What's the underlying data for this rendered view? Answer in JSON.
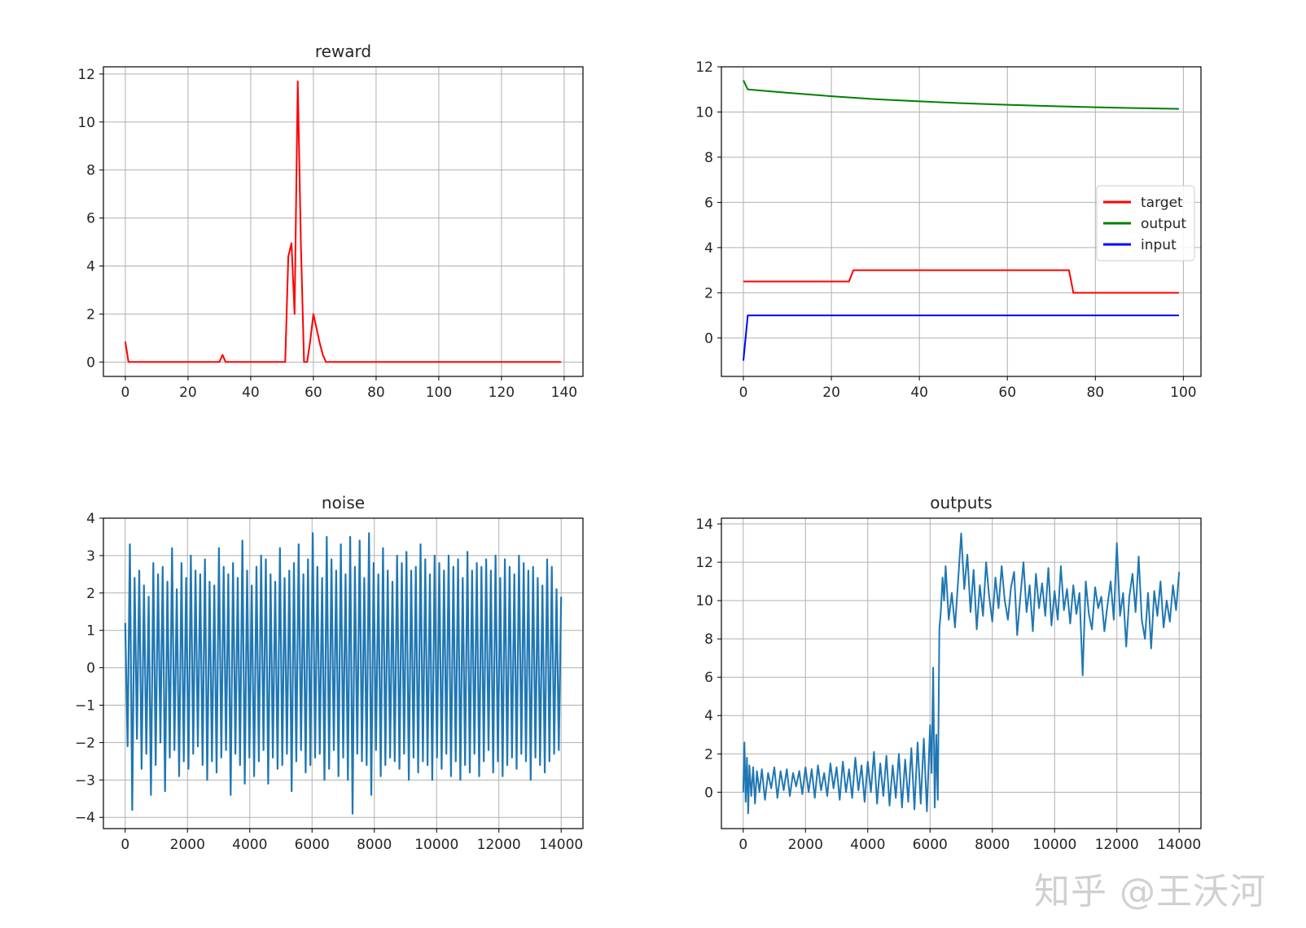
{
  "watermark": "知乎 @王沃河",
  "colors": {
    "red": "#ff0000",
    "green": "#008000",
    "blue": "#0000ff",
    "tab_blue": "#1f77b4",
    "grid": "#b0b0b0",
    "axis": "#000000"
  },
  "chart_data": [
    {
      "type": "line",
      "title": "reward",
      "xlabel": "",
      "ylabel": "",
      "xlim": [
        -7,
        146
      ],
      "ylim": [
        -0.6,
        12.3
      ],
      "xticks": [
        0,
        20,
        40,
        60,
        80,
        100,
        120,
        140
      ],
      "yticks": [
        0,
        2,
        4,
        6,
        8,
        10,
        12
      ],
      "grid": true,
      "series": [
        {
          "color": "#ff0000",
          "x": [
            0,
            1,
            30,
            31,
            32,
            51,
            52,
            53,
            54,
            55,
            56,
            57,
            58,
            59,
            60,
            61,
            62,
            63,
            64,
            139
          ],
          "y": [
            0.85,
            0,
            0,
            0.3,
            0,
            0,
            4.4,
            4.95,
            2.0,
            11.7,
            5.0,
            0,
            0,
            0.9,
            2.0,
            1.4,
            0.8,
            0.3,
            0,
            0
          ]
        }
      ]
    },
    {
      "type": "line",
      "title": "",
      "xlabel": "",
      "ylabel": "",
      "xlim": [
        -5,
        104
      ],
      "ylim": [
        -1.7,
        12.0
      ],
      "xticks": [
        0,
        20,
        40,
        60,
        80,
        100
      ],
      "yticks": [
        0,
        2,
        4,
        6,
        8,
        10,
        12
      ],
      "grid": true,
      "legend_position": "center-right",
      "series": [
        {
          "name": "target",
          "color": "#ff0000",
          "x": [
            0,
            24,
            25,
            74,
            75,
            99
          ],
          "y": [
            2.5,
            2.5,
            3.0,
            3.0,
            2.0,
            2.0
          ]
        },
        {
          "name": "output",
          "color": "#008000",
          "x": [
            0,
            1,
            10,
            20,
            30,
            40,
            50,
            60,
            70,
            80,
            90,
            99
          ],
          "y": [
            11.4,
            11.0,
            10.85,
            10.7,
            10.57,
            10.47,
            10.39,
            10.32,
            10.26,
            10.21,
            10.17,
            10.14
          ]
        },
        {
          "name": "input",
          "color": "#0000ff",
          "x": [
            0,
            1,
            99
          ],
          "y": [
            -1.0,
            1.0,
            1.0
          ]
        }
      ]
    },
    {
      "type": "line",
      "title": "noise",
      "xlabel": "",
      "ylabel": "",
      "xlim": [
        -700,
        14700
      ],
      "ylim": [
        -4.3,
        4.0
      ],
      "xticks": [
        0,
        2000,
        4000,
        6000,
        8000,
        10000,
        12000,
        14000
      ],
      "ytick_labels": [
        "−4",
        "−3",
        "−2",
        "−1",
        "0",
        "1",
        "2",
        "3",
        "4"
      ],
      "yticks": [
        -4,
        -3,
        -2,
        -1,
        0,
        1,
        2,
        3,
        4
      ],
      "grid": true,
      "series": [
        {
          "color": "#1f77b4",
          "x_start": 0,
          "x_end": 14000,
          "y": [
            1.2,
            -2.1,
            3.3,
            -3.8,
            2.4,
            -1.9,
            2.6,
            -2.7,
            2.2,
            -2.3,
            1.9,
            -3.4,
            2.8,
            -2.6,
            2.5,
            -2.0,
            2.7,
            -3.3,
            2.3,
            -2.4,
            3.2,
            -2.2,
            2.1,
            -2.9,
            2.8,
            -2.5,
            2.4,
            -2.7,
            3.0,
            -2.3,
            2.6,
            -2.1,
            2.5,
            -2.6,
            2.9,
            -3.0,
            2.3,
            -2.5,
            2.2,
            -2.8,
            3.2,
            -2.4,
            2.7,
            -2.2,
            2.5,
            -3.4,
            2.8,
            -2.3,
            2.4,
            -2.6,
            3.4,
            -3.1,
            2.6,
            -2.4,
            2.2,
            -2.9,
            2.7,
            -2.5,
            3.0,
            -2.2,
            2.9,
            -3.1,
            2.5,
            -2.4,
            2.3,
            -2.7,
            3.2,
            -2.6,
            2.4,
            -2.3,
            2.6,
            -3.3,
            2.8,
            -2.5,
            3.3,
            -2.2,
            2.5,
            -2.8,
            2.9,
            -2.6,
            3.6,
            -2.4,
            2.7,
            -2.3,
            2.4,
            -3.0,
            3.5,
            -2.7,
            2.9,
            -2.2,
            2.6,
            -2.9,
            3.3,
            -2.4,
            2.5,
            -3.0,
            3.5,
            -3.9,
            2.7,
            -2.3,
            3.4,
            -2.5,
            2.4,
            -2.6,
            3.6,
            -3.4,
            2.8,
            -2.2,
            2.5,
            -2.9,
            3.2,
            -2.6,
            2.6,
            -2.4,
            2.3,
            -2.5,
            3.0,
            -2.7,
            2.8,
            -2.3,
            3.1,
            -3.0,
            2.6,
            -2.4,
            2.7,
            -2.8,
            3.3,
            -2.5,
            2.9,
            -2.6,
            2.5,
            -3.0,
            3.0,
            -2.4,
            2.8,
            -2.7,
            2.6,
            -2.3,
            3.0,
            -2.9,
            2.7,
            -2.5,
            2.9,
            -3.0,
            2.4,
            -2.6,
            3.1,
            -2.8,
            2.6,
            -2.3,
            2.8,
            -2.9,
            2.7,
            -2.5,
            2.9,
            -2.2,
            2.6,
            -2.8,
            3.0,
            -2.5,
            2.4,
            -2.9,
            2.9,
            -2.6,
            2.7,
            -2.4,
            2.5,
            -2.7,
            3.0,
            -2.3,
            2.8,
            -2.5,
            2.6,
            -3.0,
            2.7,
            -2.4,
            2.4,
            -2.6,
            2.2,
            -2.8,
            2.9,
            -2.5,
            2.7,
            -2.3,
            2.1,
            -2.2,
            1.9
          ]
        }
      ]
    },
    {
      "type": "line",
      "title": "outputs",
      "xlabel": "",
      "ylabel": "",
      "xlim": [
        -700,
        14700
      ],
      "ylim": [
        -1.9,
        14.3
      ],
      "xticks": [
        0,
        2000,
        4000,
        6000,
        8000,
        10000,
        12000,
        14000
      ],
      "yticks": [
        0,
        2,
        4,
        6,
        8,
        10,
        12,
        14
      ],
      "grid": true,
      "series": [
        {
          "color": "#1f77b4",
          "x": [
            0,
            40,
            80,
            120,
            160,
            200,
            260,
            320,
            380,
            440,
            520,
            600,
            700,
            800,
            900,
            1000,
            1100,
            1200,
            1300,
            1400,
            1500,
            1600,
            1700,
            1800,
            1900,
            2000,
            2100,
            2200,
            2300,
            2400,
            2500,
            2600,
            2700,
            2800,
            2900,
            3000,
            3100,
            3200,
            3300,
            3400,
            3500,
            3600,
            3700,
            3800,
            3900,
            4000,
            4100,
            4200,
            4300,
            4400,
            4500,
            4600,
            4700,
            4800,
            4900,
            5000,
            5100,
            5200,
            5300,
            5400,
            5500,
            5600,
            5700,
            5800,
            5900,
            6000,
            6050,
            6100,
            6150,
            6200,
            6250,
            6300,
            6350,
            6400,
            6450,
            6500,
            6600,
            6700,
            6800,
            6900,
            7000,
            7100,
            7200,
            7300,
            7400,
            7500,
            7600,
            7700,
            7800,
            7900,
            8000,
            8100,
            8200,
            8300,
            8400,
            8500,
            8600,
            8700,
            8800,
            8900,
            9000,
            9100,
            9200,
            9300,
            9400,
            9500,
            9600,
            9700,
            9800,
            9900,
            10000,
            10100,
            10200,
            10300,
            10400,
            10500,
            10600,
            10700,
            10800,
            10900,
            11000,
            11100,
            11200,
            11300,
            11400,
            11500,
            11600,
            11700,
            11800,
            11900,
            12000,
            12100,
            12200,
            12300,
            12400,
            12500,
            12600,
            12700,
            12800,
            12900,
            13000,
            13100,
            13200,
            13300,
            13400,
            13500,
            13600,
            13700,
            13800,
            13900,
            14000
          ],
          "y": [
            0.0,
            2.6,
            -0.5,
            1.8,
            -1.1,
            1.4,
            -0.2,
            1.3,
            -0.6,
            1.1,
            0.0,
            1.2,
            -0.4,
            1.0,
            0.2,
            1.3,
            -0.3,
            1.1,
            0.1,
            1.2,
            -0.2,
            1.0,
            0.3,
            1.1,
            -0.1,
            1.3,
            0.0,
            1.2,
            -0.3,
            1.4,
            0.1,
            1.0,
            -0.2,
            1.5,
            0.2,
            1.3,
            -0.4,
            1.6,
            0.0,
            1.2,
            -0.3,
            1.8,
            0.1,
            1.4,
            -0.5,
            1.6,
            0.0,
            2.1,
            -0.6,
            1.5,
            -0.2,
            1.9,
            -0.7,
            1.4,
            -0.3,
            2.0,
            -0.8,
            1.7,
            -0.5,
            2.3,
            -0.9,
            2.6,
            -0.6,
            2.8,
            -1.0,
            3.5,
            1.0,
            6.5,
            -0.8,
            3.0,
            -0.4,
            8.5,
            9.5,
            11.2,
            10.0,
            11.8,
            9.0,
            10.4,
            8.6,
            11.0,
            13.5,
            10.6,
            12.4,
            9.4,
            11.6,
            8.5,
            10.8,
            9.2,
            12.0,
            10.2,
            8.9,
            11.2,
            9.6,
            11.8,
            10.0,
            9.0,
            10.7,
            11.5,
            8.2,
            10.2,
            12.0,
            9.4,
            10.8,
            8.4,
            11.4,
            9.6,
            10.9,
            9.2,
            11.7,
            8.7,
            10.5,
            9.0,
            11.8,
            9.5,
            10.6,
            8.8,
            10.8,
            9.3,
            10.4,
            6.1,
            11.0,
            9.3,
            8.5,
            10.7,
            9.6,
            10.2,
            8.4,
            9.8,
            11.0,
            9.0,
            13.0,
            9.2,
            10.4,
            7.6,
            10.2,
            11.4,
            9.4,
            12.3,
            9.0,
            8.0,
            10.4,
            7.5,
            10.5,
            9.2,
            11.0,
            8.6,
            10.0,
            8.9,
            10.8,
            9.5,
            11.5
          ]
        }
      ]
    }
  ]
}
